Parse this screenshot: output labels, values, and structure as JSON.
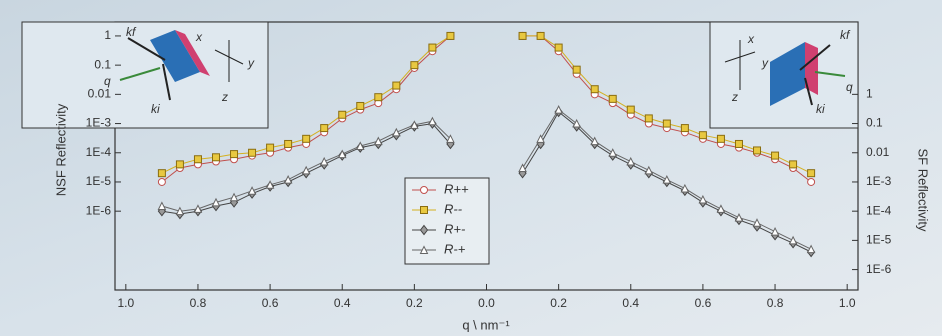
{
  "chart_data": {
    "type": "line",
    "x_label": "q \\ nm⁻¹",
    "y_label": "NSF Reflectivity",
    "y2_label": "SF Reflectivity",
    "ylog": true,
    "xlim": [
      -1.03,
      1.03
    ],
    "ylim": [
      2e-09,
      3
    ],
    "y2lim": [
      2e-07,
      300
    ],
    "xticks": [
      {
        "value": -1,
        "label": "1.0"
      },
      {
        "value": -0.8,
        "label": "0.8"
      },
      {
        "value": -0.6,
        "label": "0.6"
      },
      {
        "value": -0.4,
        "label": "0.4"
      },
      {
        "value": -0.2,
        "label": "0.2"
      },
      {
        "value": 0,
        "label": "0.0"
      },
      {
        "value": 0.2,
        "label": "0.2"
      },
      {
        "value": 0.4,
        "label": "0.4"
      },
      {
        "value": 0.6,
        "label": "0.6"
      },
      {
        "value": 0.8,
        "label": "0.8"
      },
      {
        "value": 1,
        "label": "1.0"
      }
    ],
    "yticks": [
      1,
      0.1,
      0.01,
      {
        "value": 0.001,
        "label": "1E-3"
      },
      {
        "value": 0.0001,
        "label": "1E-4"
      },
      {
        "value": 1e-05,
        "label": "1E-5"
      },
      {
        "value": 1e-06,
        "label": "1E-6"
      }
    ],
    "y2ticks": [
      1,
      0.1,
      0.01,
      {
        "value": 0.001,
        "label": "1E-3"
      },
      {
        "value": 0.0001,
        "label": "1E-4"
      },
      {
        "value": 1e-05,
        "label": "1E-5"
      },
      {
        "value": 1e-06,
        "label": "1E-6"
      }
    ],
    "legend": "bottom-center",
    "annotations": [
      "kf",
      "x",
      "y",
      "z",
      "q",
      "ki",
      "x",
      "y",
      "z",
      "kf",
      "q",
      "ki"
    ],
    "x": [
      -0.9,
      -0.85,
      -0.8,
      -0.75,
      -0.7,
      -0.65,
      -0.6,
      -0.55,
      -0.5,
      -0.45,
      -0.4,
      -0.35,
      -0.3,
      -0.25,
      -0.2,
      -0.15,
      -0.1,
      0,
      0.1,
      0.15,
      0.2,
      0.25,
      0.3,
      0.35,
      0.4,
      0.45,
      0.5,
      0.55,
      0.6,
      0.65,
      0.7,
      0.75,
      0.8,
      0.85,
      0.9
    ],
    "series": [
      {
        "name": "R++",
        "color": "#c0504d",
        "marker": "circle",
        "values": [
          1e-05,
          3e-05,
          4e-05,
          5e-05,
          6e-05,
          8e-05,
          0.0001,
          0.00015,
          0.0002,
          0.0005,
          0.0015,
          0.003,
          0.005,
          0.015,
          0.08,
          0.3,
          1,
          null,
          1,
          1,
          0.3,
          0.05,
          0.01,
          0.005,
          0.002,
          0.001,
          0.0007,
          0.0005,
          0.0003,
          0.0002,
          0.00015,
          0.0001,
          6e-05,
          3e-05,
          1e-05
        ]
      },
      {
        "name": "R--",
        "color": "#d4b020",
        "marker": "square",
        "values": [
          2e-05,
          4e-05,
          6e-05,
          7e-05,
          9e-05,
          0.0001,
          0.00015,
          0.0002,
          0.0003,
          0.0007,
          0.002,
          0.004,
          0.008,
          0.02,
          0.1,
          0.4,
          1,
          null,
          1,
          1,
          0.4,
          0.07,
          0.015,
          0.007,
          0.003,
          0.0015,
          0.001,
          0.0007,
          0.0004,
          0.0003,
          0.0002,
          0.00012,
          8e-05,
          4e-05,
          2e-05
        ]
      },
      {
        "name": "R+-",
        "color": "#444444",
        "marker": "diamond",
        "axis": "y2",
        "values": [
          0.0001,
          8e-05,
          0.0001,
          0.00015,
          0.0002,
          0.0004,
          0.0007,
          0.001,
          0.002,
          0.004,
          0.008,
          0.015,
          0.02,
          0.04,
          0.08,
          0.1,
          0.02,
          null,
          0.002,
          0.02,
          0.25,
          0.08,
          0.02,
          0.008,
          0.004,
          0.002,
          0.001,
          0.0005,
          0.0002,
          0.0001,
          5e-05,
          3e-05,
          1.5e-05,
          8e-06,
          4e-06
        ]
      },
      {
        "name": "R-+",
        "color": "#666666",
        "marker": "triangle",
        "axis": "y2",
        "values": [
          0.00015,
          0.0001,
          0.00012,
          0.0002,
          0.0003,
          0.0005,
          0.0008,
          0.0012,
          0.0025,
          0.005,
          0.009,
          0.017,
          0.025,
          0.05,
          0.09,
          0.12,
          0.03,
          null,
          0.003,
          0.03,
          0.3,
          0.1,
          0.025,
          0.01,
          0.005,
          0.0025,
          0.0012,
          0.0006,
          0.00025,
          0.00012,
          6e-05,
          4e-05,
          2e-05,
          1e-05,
          5e-06
        ]
      }
    ]
  }
}
